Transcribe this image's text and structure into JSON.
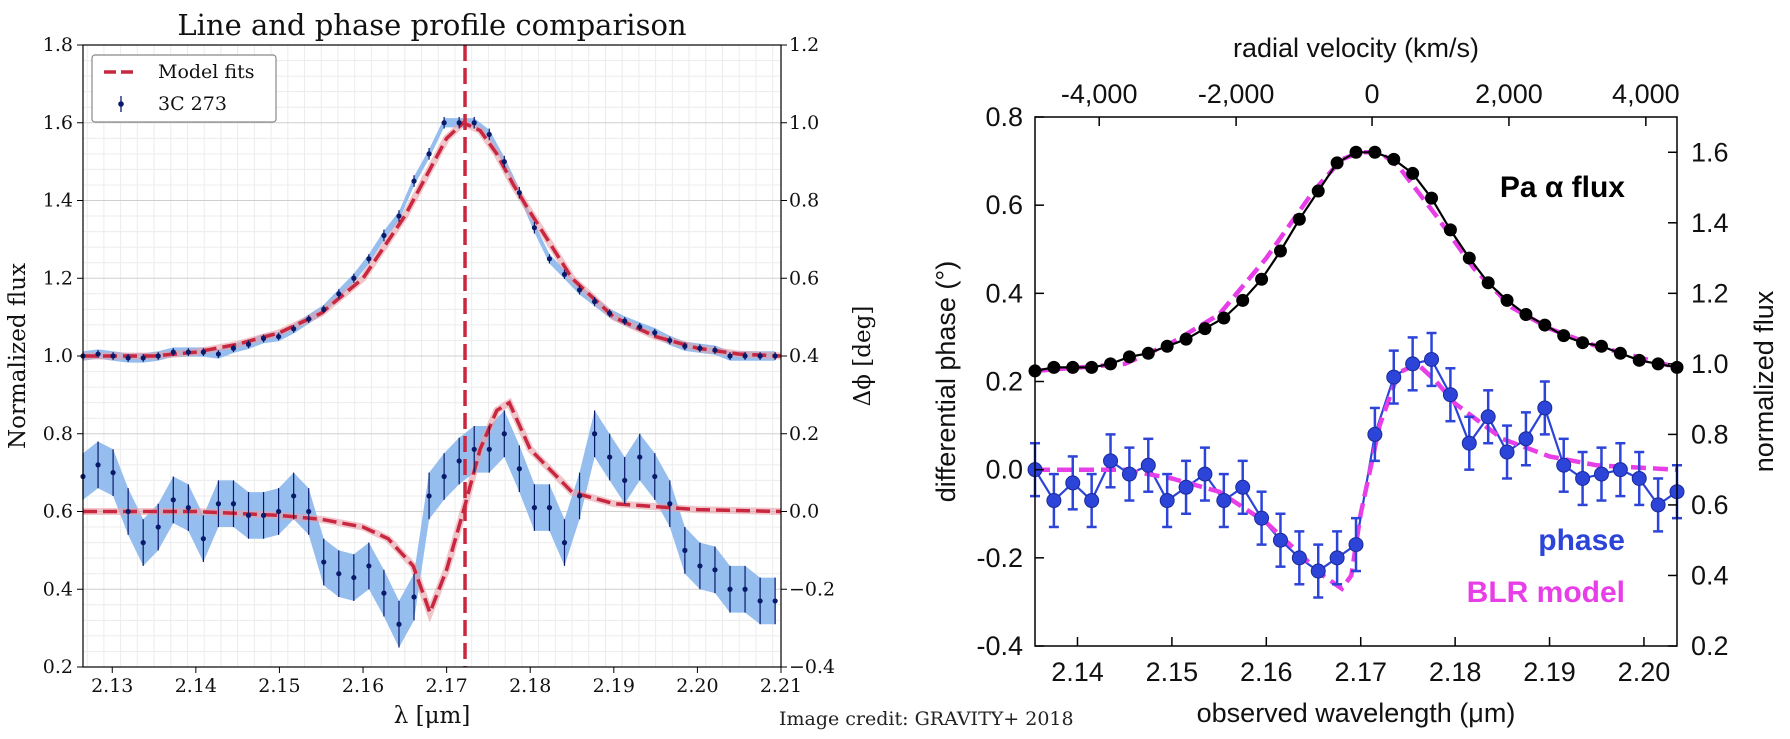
{
  "credit": "Image credit: GRAVITY+ 2018",
  "chart_data": [
    {
      "type": "line",
      "title": "Line and phase profile comparison",
      "xlabel": "λ [μm]",
      "ylabel": "Normalized flux",
      "y2label": "Δϕ [deg]",
      "xlim": [
        2.1265,
        2.21
      ],
      "ylim": [
        0.2,
        1.8
      ],
      "y2lim": [
        -0.4,
        1.2
      ],
      "xticks": [
        2.13,
        2.14,
        2.15,
        2.16,
        2.17,
        2.18,
        2.19,
        2.2,
        2.21
      ],
      "xticklabels": [
        "2.13",
        "2.14",
        "2.15",
        "2.16",
        "2.17",
        "2.18",
        "2.19",
        "2.20",
        "2.21"
      ],
      "yticks": [
        0.2,
        0.4,
        0.6,
        0.8,
        1.0,
        1.2,
        1.4,
        1.6,
        1.8
      ],
      "yticklabels": [
        "0.2",
        "0.4",
        "0.6",
        "0.8",
        "1.0",
        "1.2",
        "1.4",
        "1.6",
        "1.8"
      ],
      "y2ticks": [
        -0.4,
        -0.2,
        0.0,
        0.2,
        0.4,
        0.6,
        0.8,
        1.0,
        1.2
      ],
      "y2ticklabels": [
        "−0.4",
        "−0.2",
        "0.0",
        "0.2",
        "0.4",
        "0.6",
        "0.8",
        "1.0",
        "1.2"
      ],
      "grid": true,
      "legend": {
        "position": "top-left",
        "entries": [
          "Model fits",
          "3C 273"
        ]
      },
      "vline_x": 2.1722,
      "series": [
        {
          "name": "3C 273 flux",
          "x": [
            2.1265,
            2.1283,
            2.1301,
            2.1319,
            2.1337,
            2.1355,
            2.1373,
            2.1391,
            2.1409,
            2.1427,
            2.1445,
            2.1463,
            2.1481,
            2.1499,
            2.1517,
            2.1535,
            2.1553,
            2.1571,
            2.1589,
            2.1607,
            2.1625,
            2.1643,
            2.1661,
            2.1679,
            2.1697,
            2.1715,
            2.1733,
            2.1751,
            2.1769,
            2.1787,
            2.1805,
            2.1823,
            2.1841,
            2.1859,
            2.1877,
            2.1895,
            2.1913,
            2.1931,
            2.1949,
            2.1967,
            2.1985,
            2.2003,
            2.2021,
            2.2039,
            2.2057,
            2.2075,
            2.2093
          ],
          "y": [
            1.0,
            1.005,
            1.0,
            0.995,
            0.995,
            1.0,
            1.01,
            1.01,
            1.01,
            1.005,
            1.02,
            1.03,
            1.045,
            1.05,
            1.07,
            1.095,
            1.12,
            1.16,
            1.2,
            1.25,
            1.31,
            1.36,
            1.45,
            1.52,
            1.6,
            1.6,
            1.6,
            1.57,
            1.5,
            1.42,
            1.33,
            1.25,
            1.21,
            1.17,
            1.14,
            1.11,
            1.09,
            1.075,
            1.06,
            1.04,
            1.025,
            1.02,
            1.015,
            1.0,
            1.0,
            1.0,
            1.0
          ],
          "err": [
            0.01,
            0.01,
            0.01,
            0.01,
            0.01,
            0.01,
            0.01,
            0.01,
            0.01,
            0.01,
            0.01,
            0.01,
            0.01,
            0.01,
            0.01,
            0.01,
            0.01,
            0.012,
            0.012,
            0.012,
            0.015,
            0.015,
            0.015,
            0.015,
            0.015,
            0.015,
            0.015,
            0.015,
            0.015,
            0.015,
            0.015,
            0.012,
            0.012,
            0.012,
            0.012,
            0.01,
            0.01,
            0.01,
            0.01,
            0.01,
            0.01,
            0.01,
            0.01,
            0.01,
            0.01,
            0.01,
            0.01
          ]
        },
        {
          "name": "3C 273 phase",
          "x": [
            2.1265,
            2.1283,
            2.1301,
            2.1319,
            2.1337,
            2.1355,
            2.1373,
            2.1391,
            2.1409,
            2.1427,
            2.1445,
            2.1463,
            2.1481,
            2.1499,
            2.1517,
            2.1535,
            2.1553,
            2.1571,
            2.1589,
            2.1607,
            2.1625,
            2.1643,
            2.1661,
            2.1679,
            2.1697,
            2.1715,
            2.1733,
            2.1751,
            2.1769,
            2.1787,
            2.1805,
            2.1823,
            2.1841,
            2.1859,
            2.1877,
            2.1895,
            2.1913,
            2.1931,
            2.1949,
            2.1967,
            2.1985,
            2.2003,
            2.2021,
            2.2039,
            2.2057,
            2.2075,
            2.2093
          ],
          "y": [
            0.09,
            0.12,
            0.1,
            0.0,
            -0.08,
            -0.04,
            0.03,
            0.01,
            -0.07,
            0.02,
            0.02,
            -0.01,
            -0.01,
            0.0,
            0.04,
            0.0,
            -0.13,
            -0.16,
            -0.17,
            -0.14,
            -0.21,
            -0.29,
            -0.22,
            0.04,
            0.09,
            0.13,
            0.16,
            0.16,
            0.2,
            0.11,
            0.01,
            0.01,
            -0.08,
            0.04,
            0.2,
            0.14,
            0.08,
            0.14,
            0.09,
            0.02,
            -0.1,
            -0.14,
            -0.15,
            -0.2,
            -0.2,
            -0.23,
            -0.23
          ],
          "err": [
            0.06,
            0.06,
            0.06,
            0.06,
            0.06,
            0.06,
            0.06,
            0.06,
            0.06,
            0.06,
            0.06,
            0.06,
            0.06,
            0.06,
            0.06,
            0.06,
            0.06,
            0.06,
            0.06,
            0.06,
            0.06,
            0.06,
            0.06,
            0.06,
            0.06,
            0.06,
            0.06,
            0.06,
            0.06,
            0.06,
            0.06,
            0.06,
            0.06,
            0.06,
            0.06,
            0.06,
            0.06,
            0.06,
            0.06,
            0.06,
            0.06,
            0.06,
            0.06,
            0.06,
            0.06,
            0.06,
            0.06
          ]
        },
        {
          "name": "Model fits (flux)",
          "x": [
            2.1265,
            2.135,
            2.14,
            2.145,
            2.15,
            2.155,
            2.16,
            2.165,
            2.168,
            2.17,
            2.172,
            2.174,
            2.176,
            2.178,
            2.18,
            2.185,
            2.19,
            2.195,
            2.2,
            2.205,
            2.21
          ],
          "y": [
            1.0,
            1.0,
            1.01,
            1.03,
            1.06,
            1.11,
            1.2,
            1.36,
            1.48,
            1.56,
            1.6,
            1.58,
            1.52,
            1.44,
            1.37,
            1.2,
            1.1,
            1.05,
            1.02,
            1.005,
            1.0
          ]
        },
        {
          "name": "Model fits (phase)",
          "x": [
            2.1265,
            2.14,
            2.15,
            2.155,
            2.16,
            2.163,
            2.166,
            2.168,
            2.17,
            2.172,
            2.174,
            2.176,
            2.1775,
            2.18,
            2.185,
            2.19,
            2.2,
            2.21
          ],
          "y": [
            0.0,
            0.0,
            -0.01,
            -0.02,
            -0.04,
            -0.07,
            -0.14,
            -0.26,
            -0.15,
            0.0,
            0.16,
            0.26,
            0.28,
            0.16,
            0.05,
            0.02,
            0.005,
            0.0
          ]
        }
      ]
    },
    {
      "type": "line",
      "title": "",
      "xlabel": "observed wavelength (μm)",
      "ylabel": "differential phase (°)",
      "y2label": "normalized flux",
      "x2label": "radial velocity (km/s)",
      "xlim": [
        2.1355,
        2.2035
      ],
      "ylim": [
        -0.4,
        0.8
      ],
      "y2lim": [
        0.2,
        1.7
      ],
      "xticks": [
        2.14,
        2.15,
        2.16,
        2.17,
        2.18,
        2.19,
        2.2
      ],
      "xticklabels": [
        "2.14",
        "2.15",
        "2.16",
        "2.17",
        "2.18",
        "2.19",
        "2.20"
      ],
      "yticks": [
        -0.4,
        -0.2,
        0.0,
        0.2,
        0.4,
        0.6,
        0.8
      ],
      "yticklabels": [
        "-0.4",
        "-0.2",
        "0.0",
        "0.2",
        "0.4",
        "0.6",
        "0.8"
      ],
      "y2ticks": [
        0.2,
        0.4,
        0.6,
        0.8,
        1.0,
        1.2,
        1.4,
        1.6
      ],
      "y2ticklabels": [
        "0.2",
        "0.4",
        "0.6",
        "0.8",
        "1.0",
        "1.2",
        "1.4",
        "1.6"
      ],
      "x2ticks_um": [
        2.1423,
        2.1568,
        2.1712,
        2.1857,
        2.2002
      ],
      "x2ticklabels": [
        "-4,000",
        "-2,000",
        "0",
        "2,000",
        "4,000"
      ],
      "grid": false,
      "annotations": [
        "Pa α  flux",
        "phase",
        "BLR model"
      ],
      "series": [
        {
          "name": "Pa α flux",
          "x": [
            2.1355,
            2.1375,
            2.1395,
            2.1415,
            2.1435,
            2.1455,
            2.1475,
            2.1495,
            2.1515,
            2.1535,
            2.1555,
            2.1575,
            2.1595,
            2.1615,
            2.1635,
            2.1655,
            2.1675,
            2.1695,
            2.1715,
            2.1735,
            2.1755,
            2.1775,
            2.1795,
            2.1815,
            2.1835,
            2.1855,
            2.1875,
            2.1895,
            2.1915,
            2.1935,
            2.1955,
            2.1975,
            2.1995,
            2.2015,
            2.2035
          ],
          "y": [
            0.98,
            0.99,
            0.99,
            0.99,
            1.0,
            1.02,
            1.03,
            1.05,
            1.07,
            1.1,
            1.13,
            1.18,
            1.24,
            1.32,
            1.41,
            1.49,
            1.57,
            1.6,
            1.6,
            1.58,
            1.54,
            1.47,
            1.38,
            1.3,
            1.23,
            1.18,
            1.14,
            1.11,
            1.08,
            1.06,
            1.05,
            1.03,
            1.01,
            1.0,
            0.99
          ]
        },
        {
          "name": "phase",
          "x": [
            2.1355,
            2.1375,
            2.1395,
            2.1415,
            2.1435,
            2.1455,
            2.1475,
            2.1495,
            2.1515,
            2.1535,
            2.1555,
            2.1575,
            2.1595,
            2.1615,
            2.1635,
            2.1655,
            2.1675,
            2.1695,
            2.1715,
            2.1735,
            2.1755,
            2.1775,
            2.1795,
            2.1815,
            2.1835,
            2.1855,
            2.1875,
            2.1895,
            2.1915,
            2.1935,
            2.1955,
            2.1975,
            2.1995,
            2.2015,
            2.2035
          ],
          "y": [
            0.0,
            -0.07,
            -0.03,
            -0.07,
            0.02,
            -0.01,
            0.01,
            -0.07,
            -0.04,
            -0.01,
            -0.07,
            -0.04,
            -0.11,
            -0.16,
            -0.2,
            -0.23,
            -0.2,
            -0.17,
            0.08,
            0.21,
            0.24,
            0.25,
            0.17,
            0.06,
            0.12,
            0.04,
            0.07,
            0.14,
            0.01,
            -0.02,
            -0.01,
            0.0,
            -0.02,
            -0.08,
            -0.05
          ],
          "err": [
            0.06,
            0.06,
            0.06,
            0.06,
            0.06,
            0.06,
            0.06,
            0.06,
            0.06,
            0.06,
            0.06,
            0.06,
            0.06,
            0.06,
            0.06,
            0.06,
            0.06,
            0.06,
            0.06,
            0.06,
            0.06,
            0.06,
            0.06,
            0.06,
            0.06,
            0.06,
            0.06,
            0.06,
            0.06,
            0.06,
            0.06,
            0.06,
            0.06,
            0.06,
            0.06
          ]
        },
        {
          "name": "BLR model (phase)",
          "x": [
            2.1355,
            2.145,
            2.15,
            2.155,
            2.16,
            2.163,
            2.166,
            2.168,
            2.169,
            2.17,
            2.172,
            2.174,
            2.176,
            2.178,
            2.18,
            2.185,
            2.19,
            2.195,
            2.2035
          ],
          "y": [
            0.0,
            0.0,
            -0.02,
            -0.05,
            -0.12,
            -0.18,
            -0.24,
            -0.27,
            -0.24,
            -0.1,
            0.1,
            0.22,
            0.24,
            0.2,
            0.15,
            0.07,
            0.03,
            0.01,
            0.0
          ]
        },
        {
          "name": "BLR model (flux)",
          "x": [
            2.1355,
            2.145,
            2.15,
            2.155,
            2.16,
            2.165,
            2.168,
            2.17,
            2.172,
            2.174,
            2.178,
            2.182,
            2.186,
            2.19,
            2.195,
            2.2035
          ],
          "y": [
            0.98,
            1.0,
            1.06,
            1.14,
            1.3,
            1.49,
            1.58,
            1.6,
            1.6,
            1.56,
            1.42,
            1.27,
            1.16,
            1.1,
            1.05,
            0.99
          ]
        }
      ]
    }
  ]
}
